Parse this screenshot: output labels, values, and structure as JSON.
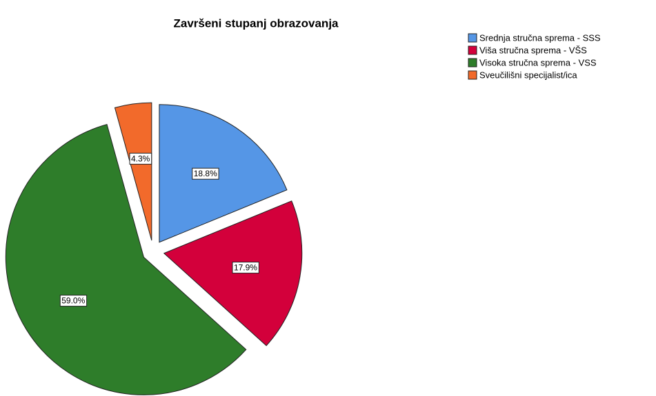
{
  "chart_data": {
    "type": "pie",
    "title": "Završeni stupanj obrazovanja",
    "categories": [
      "Srednja stručna sprema - SSS",
      "Viša stručna sprema - VŠS",
      "Visoka stručna sprema - VSS",
      "Sveučilišni specijalist/ica"
    ],
    "values": [
      18.8,
      17.9,
      59.0,
      4.3
    ],
    "value_labels": [
      "18.8%",
      "17.9%",
      "59.0%",
      "4.3%"
    ],
    "colors": [
      "#5596e6",
      "#d3003b",
      "#2e7d2a",
      "#f26a2b"
    ],
    "legend": "top-right"
  }
}
